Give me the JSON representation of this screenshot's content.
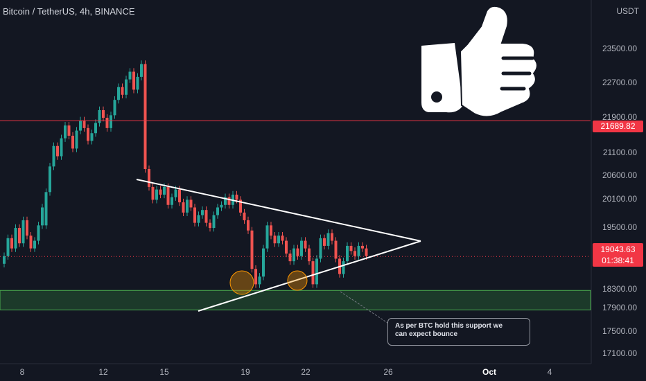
{
  "header": {
    "symbol_title": "Bitcoin / TetherUS, 4h, BINANCE",
    "currency": "USDT"
  },
  "price_axis": {
    "ticks": [
      "23500.00",
      "22700.00",
      "21900.00",
      "21100.00",
      "20600.00",
      "20100.00",
      "19500.00",
      "18300.00",
      "17900.00",
      "17500.00",
      "17100.00"
    ]
  },
  "time_axis": {
    "ticks": [
      "8",
      "12",
      "15",
      "19",
      "22",
      "26",
      "Oct",
      "4"
    ]
  },
  "levels": {
    "resistance": {
      "label": "21689.82",
      "color": "#f23645"
    },
    "current": {
      "label": "19043.63",
      "countdown": "01:38:41",
      "color": "#f23645"
    }
  },
  "annotation": {
    "text_line1": "As per BTC hold this support we",
    "text_line2": "can expect bounce"
  },
  "chart_data": {
    "type": "candlestick",
    "title": "Bitcoin / TetherUS, 4h, BINANCE",
    "ylabel": "USDT",
    "ylim": [
      16950,
      24050
    ],
    "support_zone": [
      18000,
      18380
    ],
    "resistance_line": 21689.82,
    "last_price": 19043.63,
    "candles": [
      [
        18900,
        19050
      ],
      [
        19050,
        19400
      ],
      [
        19400,
        19200
      ],
      [
        19200,
        19600
      ],
      [
        19600,
        19300
      ],
      [
        19300,
        19750
      ],
      [
        19750,
        19450
      ],
      [
        19450,
        19200
      ],
      [
        19200,
        19350
      ],
      [
        19350,
        19650
      ],
      [
        19650,
        20000
      ],
      [
        19650,
        20300
      ],
      [
        20300,
        20800
      ],
      [
        20800,
        21200
      ],
      [
        21200,
        21000
      ],
      [
        21000,
        21350
      ],
      [
        21350,
        21600
      ],
      [
        21600,
        21400
      ],
      [
        21400,
        21150
      ],
      [
        21150,
        21500
      ],
      [
        21500,
        21700
      ],
      [
        21700,
        21550
      ],
      [
        21550,
        21300
      ],
      [
        21300,
        21450
      ],
      [
        21450,
        21650
      ],
      [
        21650,
        21900
      ],
      [
        21900,
        21750
      ],
      [
        21750,
        21550
      ],
      [
        21550,
        21800
      ],
      [
        21800,
        22100
      ],
      [
        22100,
        22350
      ],
      [
        22350,
        22200
      ],
      [
        22200,
        22500
      ],
      [
        22500,
        22650
      ],
      [
        22650,
        22300
      ],
      [
        22300,
        22550
      ],
      [
        22550,
        22800
      ],
      [
        22800,
        20750
      ],
      [
        20750,
        20400
      ],
      [
        20400,
        20150
      ],
      [
        20150,
        20350
      ],
      [
        20350,
        20250
      ],
      [
        20250,
        20400
      ],
      [
        20400,
        20050
      ],
      [
        20050,
        20200
      ],
      [
        20200,
        20350
      ],
      [
        20350,
        20100
      ],
      [
        20100,
        19900
      ],
      [
        19900,
        20150
      ],
      [
        20150,
        20000
      ],
      [
        20000,
        19700
      ],
      [
        19700,
        19850
      ],
      [
        19850,
        19950
      ],
      [
        19950,
        19700
      ],
      [
        19700,
        19600
      ],
      [
        19600,
        19850
      ],
      [
        19850,
        20000
      ],
      [
        20000,
        20050
      ],
      [
        20050,
        20200
      ],
      [
        20200,
        20050
      ],
      [
        20050,
        20250
      ],
      [
        20250,
        20150
      ],
      [
        20150,
        19900
      ],
      [
        19900,
        19750
      ],
      [
        19750,
        19550
      ],
      [
        19550,
        18800
      ],
      [
        18800,
        18500
      ],
      [
        18500,
        18650
      ],
      [
        18650,
        19200
      ],
      [
        19200,
        19650
      ],
      [
        19650,
        19450
      ],
      [
        19450,
        19300
      ],
      [
        19300,
        19450
      ],
      [
        19450,
        19350
      ],
      [
        19350,
        19100
      ],
      [
        19100,
        18950
      ],
      [
        18950,
        19200
      ],
      [
        19200,
        19050
      ],
      [
        19050,
        19350
      ],
      [
        19350,
        19200
      ],
      [
        19200,
        18950
      ],
      [
        18950,
        18500
      ],
      [
        18500,
        19000
      ],
      [
        19000,
        19400
      ],
      [
        19400,
        19250
      ],
      [
        19250,
        19500
      ],
      [
        19500,
        19350
      ],
      [
        19350,
        19000
      ],
      [
        19000,
        18700
      ],
      [
        18700,
        18950
      ],
      [
        18950,
        19250
      ],
      [
        19250,
        19150
      ],
      [
        19150,
        19050
      ],
      [
        19050,
        19250
      ],
      [
        19250,
        19200
      ],
      [
        19200,
        19050
      ]
    ]
  }
}
